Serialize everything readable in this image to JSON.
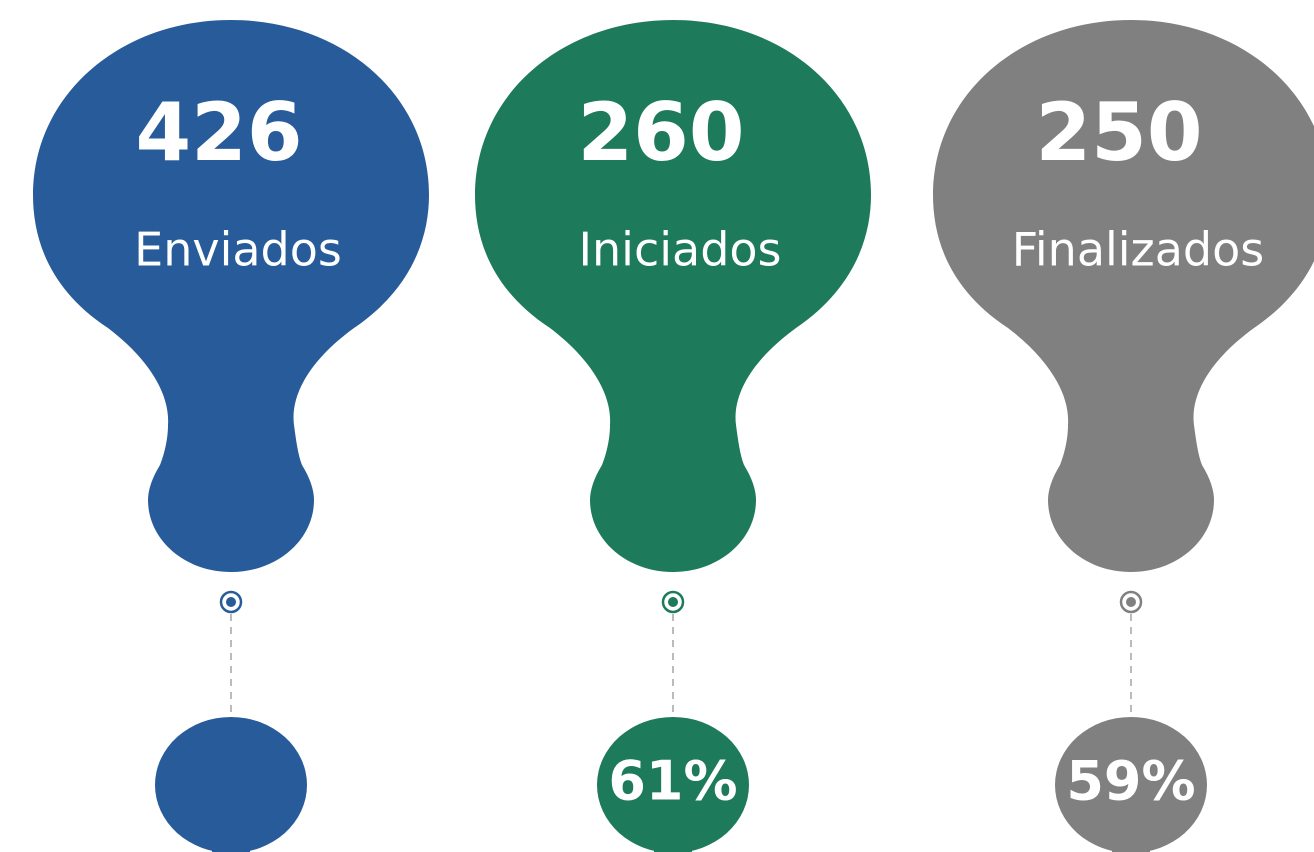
{
  "items": [
    {
      "value": 426,
      "label": "Enviados",
      "color": "#275b9a"
    },
    {
      "value": 260,
      "label": "Iniciados",
      "color": "#1d7a5a",
      "percent": "61%"
    },
    {
      "value": 250,
      "label": "Finalizados",
      "color": "#808080",
      "percent": "59%"
    }
  ]
}
